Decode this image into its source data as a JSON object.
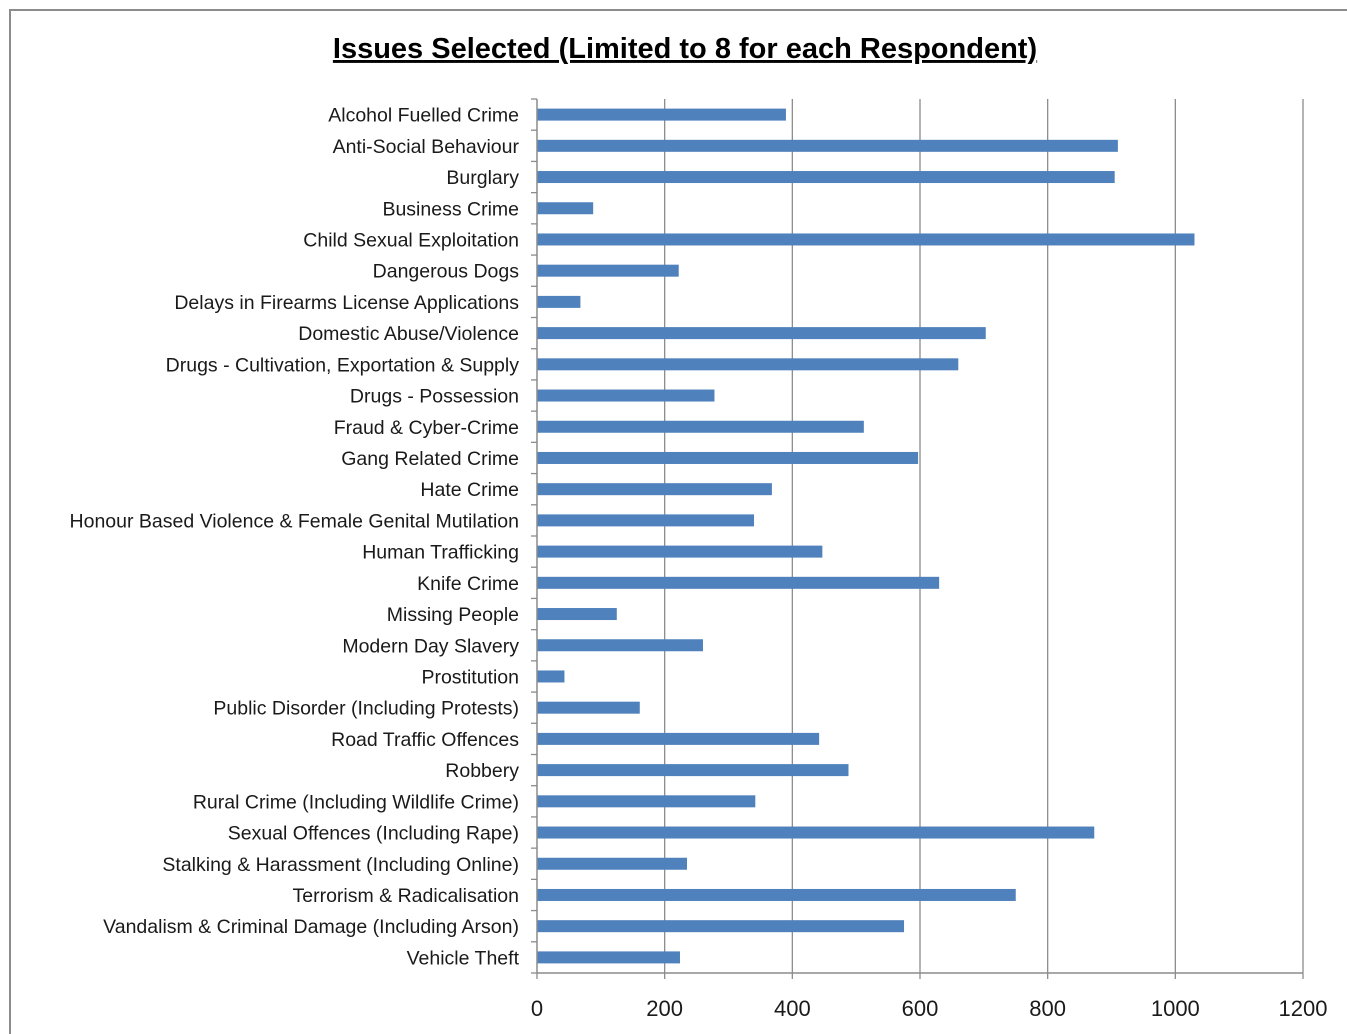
{
  "chart_data": {
    "type": "bar",
    "orientation": "horizontal",
    "title": "Issues Selected (Limited to 8 for each Respondent)",
    "xlabel": "",
    "ylabel": "",
    "xlim": [
      0,
      1200
    ],
    "x_ticks": [
      0,
      200,
      400,
      600,
      800,
      1000,
      1200
    ],
    "grid": "vertical-major",
    "legend": "none",
    "bar_color": "#4F81BD",
    "categories": [
      "Alcohol Fuelled Crime",
      "Anti-Social Behaviour",
      "Burglary",
      "Business Crime",
      "Child Sexual Exploitation",
      "Dangerous Dogs",
      "Delays in Firearms License Applications",
      "Domestic Abuse/Violence",
      "Drugs - Cultivation, Exportation & Supply",
      "Drugs - Possession",
      "Fraud & Cyber-Crime",
      "Gang Related Crime",
      "Hate Crime",
      "Honour Based Violence & Female Genital Mutilation",
      "Human Trafficking",
      "Knife Crime",
      "Missing People",
      "Modern Day Slavery",
      "Prostitution",
      "Public Disorder (Including Protests)",
      "Road Traffic Offences",
      "Robbery",
      "Rural Crime (Including Wildlife Crime)",
      "Sexual Offences (Including Rape)",
      "Stalking & Harassment (Including Online)",
      "Terrorism & Radicalisation",
      "Vandalism & Criminal Damage (Including Arson)",
      "Vehicle Theft"
    ],
    "values": [
      390,
      910,
      905,
      88,
      1030,
      222,
      68,
      703,
      660,
      278,
      512,
      597,
      368,
      340,
      447,
      630,
      125,
      260,
      43,
      161,
      442,
      488,
      342,
      873,
      235,
      750,
      575,
      224
    ]
  }
}
